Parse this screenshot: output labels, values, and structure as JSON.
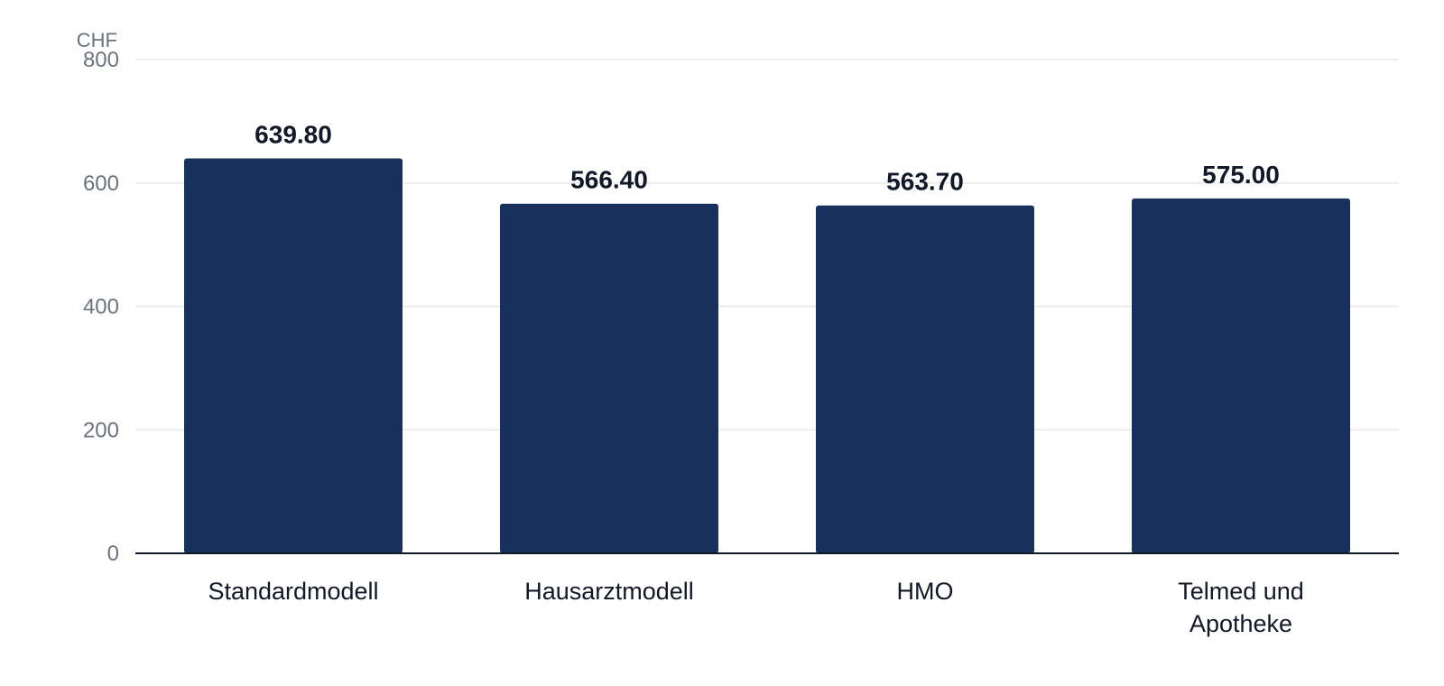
{
  "chart_data": {
    "type": "bar",
    "categories": [
      [
        "Standardmodell"
      ],
      [
        "Hausarztmodell"
      ],
      [
        "HMO"
      ],
      [
        "Telmed und",
        "Apotheke"
      ]
    ],
    "values": [
      639.8,
      566.4,
      563.7,
      575.0
    ],
    "value_labels": [
      "639.80",
      "566.40",
      "563.70",
      "575.00"
    ],
    "ylabel": "CHF",
    "ylim": [
      0,
      800
    ],
    "yticks": [
      0,
      200,
      400,
      600,
      800
    ],
    "grid": true,
    "bar_color": "#17305c"
  }
}
